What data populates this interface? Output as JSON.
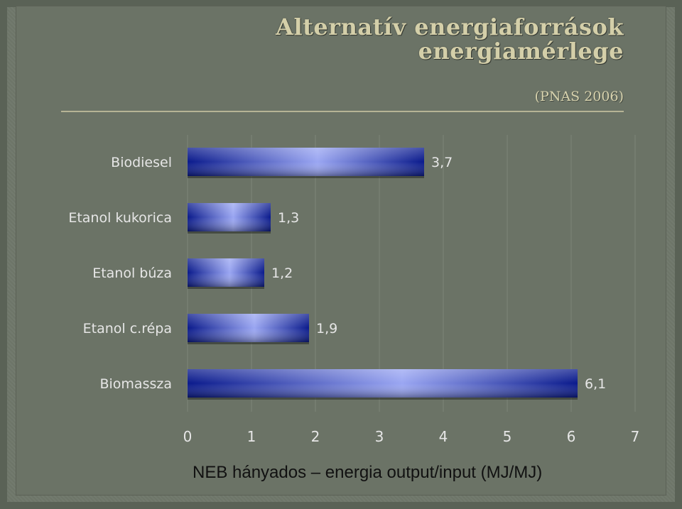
{
  "slide": {
    "title_line1": "Alternatív energiaforrások",
    "title_line2": "energiamérlege",
    "subtitle": "(PNAS 2006)",
    "caption": "NEB hányados – energia output/input (MJ/MJ)"
  },
  "chart_data": {
    "type": "bar",
    "orientation": "horizontal",
    "categories": [
      "Biodiesel",
      "Etanol kukorica",
      "Etanol búza",
      "Etanol c.répa",
      "Biomassza"
    ],
    "values": [
      3.7,
      1.3,
      1.2,
      1.9,
      6.1
    ],
    "value_labels": [
      "3,7",
      "1,3",
      "1,2",
      "1,9",
      "6,1"
    ],
    "xlim": [
      0,
      7
    ],
    "x_ticks": [
      "0",
      "1",
      "2",
      "3",
      "4",
      "5",
      "6",
      "7"
    ],
    "grid": "vertical",
    "colors": {
      "bar_dark": "#0a1a8c",
      "bar_light": "#9aa6f2",
      "label": "#e6e6e6",
      "grid": "#7c8478"
    }
  }
}
